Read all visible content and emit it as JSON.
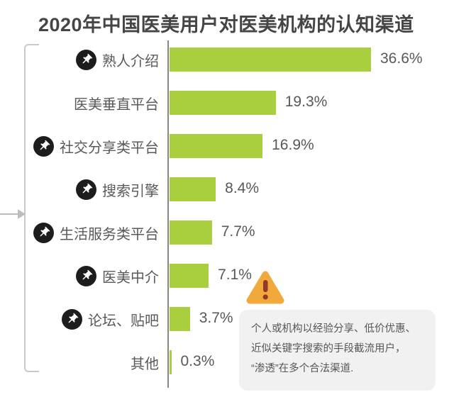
{
  "chart_data": {
    "type": "bar",
    "orientation": "horizontal",
    "title": "2020年中国医美用户对医美机构的认知渠道",
    "categories": [
      "熟人介绍",
      "医美垂直平台",
      "社交分享类平台",
      "搜索引擎",
      "生活服务类平台",
      "医美中介",
      "论坛、贴吧",
      "其他"
    ],
    "values": [
      36.6,
      19.3,
      16.9,
      8.4,
      7.7,
      7.1,
      3.7,
      0.3
    ],
    "value_labels": [
      "36.6%",
      "19.3%",
      "16.9%",
      "8.4%",
      "7.7%",
      "7.1%",
      "3.7%",
      "0.3%"
    ],
    "pinned_rows": [
      true,
      false,
      true,
      true,
      true,
      true,
      true,
      false
    ],
    "xlim": [
      0,
      40
    ],
    "grid": false,
    "legend": "none",
    "bar_color": "#a9ce3e"
  },
  "callout": {
    "icon": "warning-triangle-icon",
    "lines": [
      "个人或机构以经验分享、低价优惠、",
      "近似关键字搜索的手段截流用户，",
      "“渗透”在多个合法渠道."
    ]
  },
  "colors": {
    "bar": "#a9ce3e",
    "axis": "#868686",
    "bracket": "#c9c9c9",
    "label_text": "#58595b",
    "title_text": "#454545",
    "pin_badge": "#1d1d1d",
    "warning_triangle": "#f2a93b",
    "warning_exclamation": "#94382b",
    "callout_bg": "#f1f1f1",
    "callout_text": "#565656"
  }
}
